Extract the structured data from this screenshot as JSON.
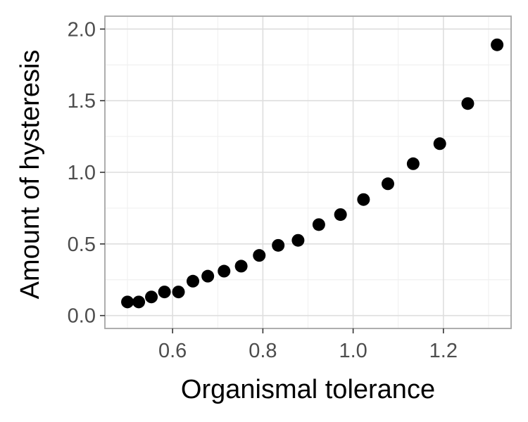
{
  "chart_data": {
    "type": "scatter",
    "title": "",
    "xlabel": "Organismal tolerance",
    "ylabel": "Amount of hysteresis",
    "xlim": [
      0.45,
      1.35
    ],
    "ylim": [
      -0.09,
      2.09
    ],
    "x_ticks": [
      0.6,
      0.8,
      1.0,
      1.2
    ],
    "x_tick_labels": [
      "0.6",
      "0.8",
      "1.0",
      "1.2"
    ],
    "y_ticks": [
      0.0,
      0.5,
      1.0,
      1.5,
      2.0
    ],
    "y_tick_labels": [
      "0.0",
      "0.5",
      "1.0",
      "1.5",
      "2.0"
    ],
    "grid": true,
    "point_color": "#000000",
    "series": [
      {
        "x": [
          0.5,
          0.525,
          0.553,
          0.582,
          0.613,
          0.645,
          0.678,
          0.714,
          0.752,
          0.792,
          0.834,
          0.878,
          0.924,
          0.972,
          1.023,
          1.077,
          1.133,
          1.192,
          1.254,
          1.319
        ],
        "y": [
          0.095,
          0.095,
          0.13,
          0.165,
          0.165,
          0.24,
          0.275,
          0.31,
          0.345,
          0.42,
          0.49,
          0.525,
          0.635,
          0.705,
          0.81,
          0.92,
          1.06,
          1.2,
          1.48,
          1.89
        ]
      }
    ]
  }
}
